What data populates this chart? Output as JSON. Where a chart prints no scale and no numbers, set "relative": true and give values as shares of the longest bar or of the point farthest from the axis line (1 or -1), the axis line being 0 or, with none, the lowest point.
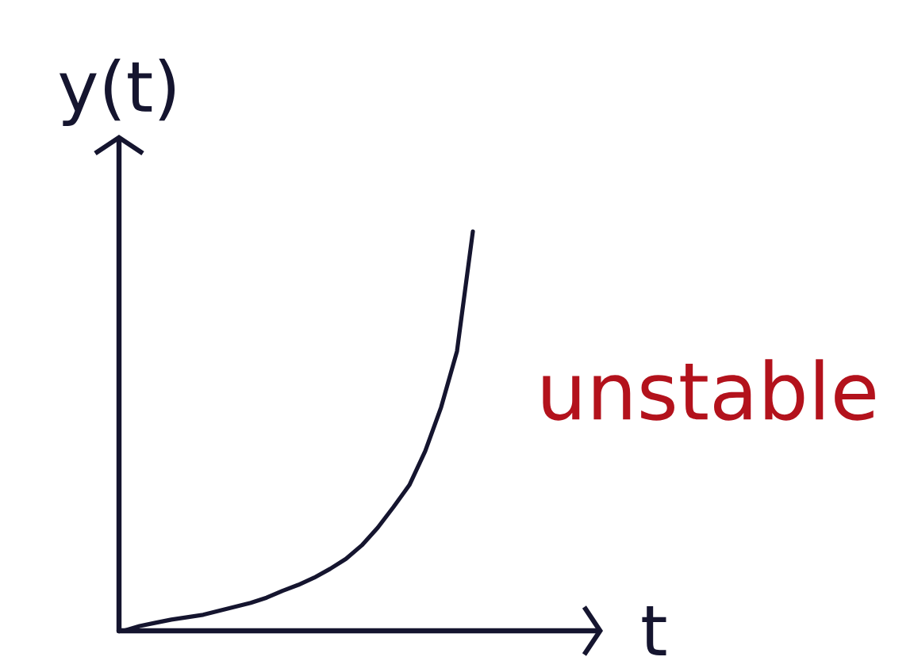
{
  "chart_data": {
    "type": "line",
    "xlabel": "t",
    "ylabel": "y(t)",
    "annotations": [
      "unstable"
    ],
    "relative": true,
    "categories": [
      null,
      null,
      null,
      null,
      null,
      null,
      null,
      null,
      null,
      null,
      null,
      null,
      null,
      null,
      null,
      null,
      null,
      null,
      null,
      null,
      null,
      null,
      null
    ],
    "series": [
      {
        "color": "#15152f",
        "values": [
          0,
          0.012,
          0.02,
          0.028,
          0.034,
          0.04,
          0.05,
          0.06,
          0.07,
          0.083,
          0.1,
          0.115,
          0.133,
          0.155,
          0.18,
          0.214,
          0.258,
          0.31,
          0.365,
          0.45,
          0.56,
          0.7,
          1
        ]
      }
    ]
  }
}
